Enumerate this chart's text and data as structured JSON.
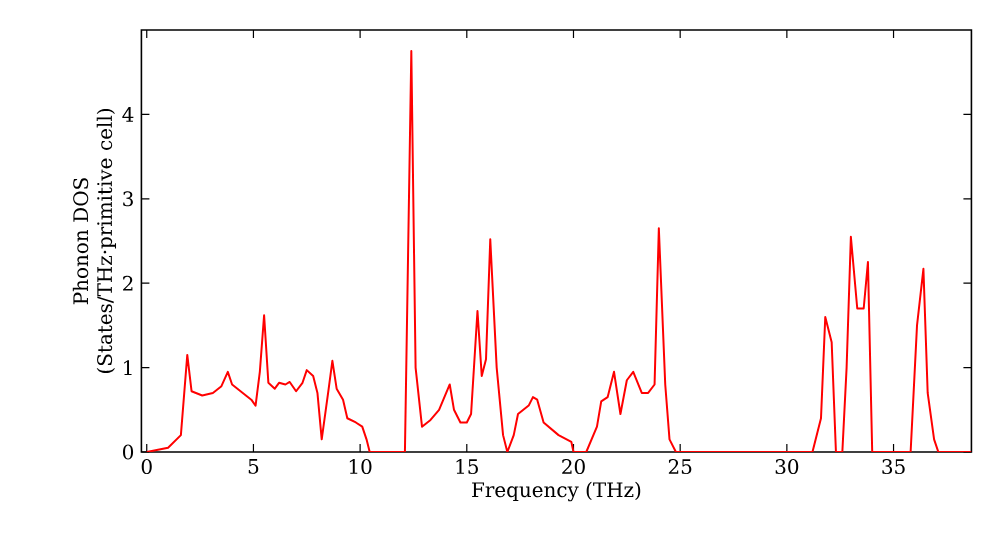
{
  "chart_data": {
    "type": "line",
    "xlabel": "Frequency (THz)",
    "ylabel": "Phonon DOS (States/THz·primitive cell)",
    "xlim": [
      -0.25,
      38.65
    ],
    "ylim": [
      0,
      5
    ],
    "xticks": [
      0,
      5,
      10,
      15,
      20,
      25,
      30,
      35
    ],
    "yticks": [
      0,
      1,
      2,
      3,
      4
    ],
    "grid": false,
    "marker": "none",
    "line_style": "solid",
    "series": [
      {
        "color": "#ff0000",
        "x": [
          0,
          1,
          1.6,
          1.9,
          2.1,
          2.6,
          3.1,
          3.5,
          3.8,
          4.0,
          4.5,
          4.9,
          5.1,
          5.3,
          5.5,
          5.7,
          6.0,
          6.2,
          6.5,
          6.7,
          7.0,
          7.3,
          7.5,
          7.8,
          8.0,
          8.2,
          8.5,
          8.7,
          8.9,
          9.2,
          9.4,
          9.8,
          10.1,
          10.3,
          10.45,
          12.1,
          12.4,
          12.6,
          12.9,
          13.3,
          13.7,
          14.2,
          14.4,
          14.7,
          15.0,
          15.2,
          15.5,
          15.7,
          15.9,
          16.1,
          16.4,
          16.7,
          16.9,
          17.2,
          17.4,
          17.9,
          18.1,
          18.3,
          18.6,
          19.3,
          19.9,
          20.0,
          20.6,
          21.1,
          21.3,
          21.6,
          21.9,
          22.2,
          22.5,
          22.8,
          23.2,
          23.5,
          23.8,
          24.0,
          24.3,
          24.5,
          24.8,
          31.2,
          31.6,
          31.8,
          32.1,
          32.3,
          32.6,
          32.8,
          33.0,
          33.3,
          33.6,
          33.8,
          34.0,
          35.8,
          36.1,
          36.4,
          36.6,
          36.9,
          37.1,
          38.65
        ],
        "values": [
          0,
          0.05,
          0.2,
          1.15,
          0.72,
          0.67,
          0.7,
          0.78,
          0.95,
          0.8,
          0.7,
          0.62,
          0.55,
          0.95,
          1.62,
          0.82,
          0.75,
          0.82,
          0.8,
          0.83,
          0.72,
          0.82,
          0.97,
          0.9,
          0.7,
          0.15,
          0.7,
          1.08,
          0.75,
          0.62,
          0.4,
          0.35,
          0.3,
          0.15,
          0,
          0,
          4.75,
          1.0,
          0.3,
          0.38,
          0.5,
          0.8,
          0.5,
          0.35,
          0.35,
          0.45,
          1.67,
          0.9,
          1.1,
          2.52,
          1.0,
          0.2,
          0,
          0.2,
          0.45,
          0.55,
          0.65,
          0.62,
          0.35,
          0.2,
          0.12,
          0,
          0,
          0.3,
          0.6,
          0.65,
          0.95,
          0.45,
          0.85,
          0.95,
          0.7,
          0.7,
          0.8,
          2.65,
          0.8,
          0.15,
          0,
          0,
          0.4,
          1.6,
          1.3,
          0,
          0,
          1.0,
          2.55,
          1.7,
          1.7,
          2.25,
          0,
          0,
          1.5,
          2.17,
          0.7,
          0.15,
          0,
          0
        ]
      }
    ]
  }
}
